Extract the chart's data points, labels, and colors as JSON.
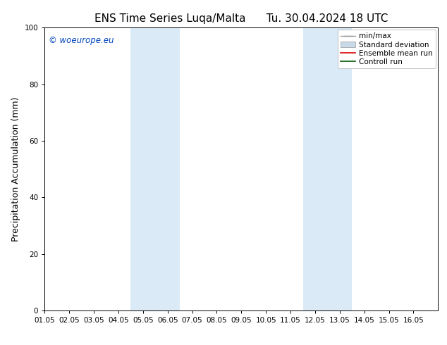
{
  "title_left": "ENS Time Series Luqa/Malta",
  "title_right": "Tu. 30.04.2024 18 UTC",
  "ylabel": "Precipitation Accumulation (mm)",
  "xlim": [
    0,
    16
  ],
  "ylim": [
    0,
    100
  ],
  "yticks": [
    0,
    20,
    40,
    60,
    80,
    100
  ],
  "xtick_labels": [
    "01.05",
    "02.05",
    "03.05",
    "04.05",
    "05.05",
    "06.05",
    "07.05",
    "08.05",
    "09.05",
    "10.05",
    "11.05",
    "12.05",
    "13.05",
    "14.05",
    "15.05",
    "16.05"
  ],
  "shaded_regions": [
    {
      "x_start": 3.5,
      "x_end": 5.5,
      "color": "#daeaf7"
    },
    {
      "x_start": 10.5,
      "x_end": 12.5,
      "color": "#daeaf7"
    }
  ],
  "copyright_text": "© woeurope.eu",
  "copyright_color": "#0044bb",
  "legend_items": [
    {
      "label": "min/max",
      "color": "#999999",
      "type": "errorbar"
    },
    {
      "label": "Standard deviation",
      "color": "#c8daea",
      "type": "fill"
    },
    {
      "label": "Ensemble mean run",
      "color": "#dd0000",
      "type": "line"
    },
    {
      "label": "Controll run",
      "color": "#005500",
      "type": "line"
    }
  ],
  "bg_color": "#ffffff",
  "plot_bg_color": "#ffffff",
  "title_fontsize": 11,
  "tick_fontsize": 7.5,
  "ylabel_fontsize": 9,
  "legend_fontsize": 7.5
}
